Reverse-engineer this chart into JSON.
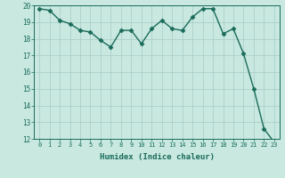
{
  "x": [
    0,
    1,
    2,
    3,
    4,
    5,
    6,
    7,
    8,
    9,
    10,
    11,
    12,
    13,
    14,
    15,
    16,
    17,
    18,
    19,
    20,
    21,
    22,
    23
  ],
  "y": [
    19.8,
    19.7,
    19.1,
    18.9,
    18.5,
    18.4,
    17.9,
    17.5,
    18.5,
    18.5,
    17.7,
    18.6,
    19.1,
    18.6,
    18.5,
    19.3,
    19.8,
    19.8,
    18.3,
    18.6,
    17.1,
    15.0,
    12.6,
    11.8
  ],
  "line_color": "#1a6b5a",
  "marker": "D",
  "marker_size": 2.5,
  "bg_color": "#c8e8e0",
  "grid_color": "#a8ccc4",
  "xlabel": "Humidex (Indice chaleur)",
  "xlim": [
    -0.5,
    23.5
  ],
  "ylim": [
    12,
    20
  ],
  "yticks": [
    12,
    13,
    14,
    15,
    16,
    17,
    18,
    19,
    20
  ],
  "xticks": [
    0,
    1,
    2,
    3,
    4,
    5,
    6,
    7,
    8,
    9,
    10,
    11,
    12,
    13,
    14,
    15,
    16,
    17,
    18,
    19,
    20,
    21,
    22,
    23
  ],
  "tick_color": "#1a6b5a",
  "label_color": "#1a6b5a"
}
